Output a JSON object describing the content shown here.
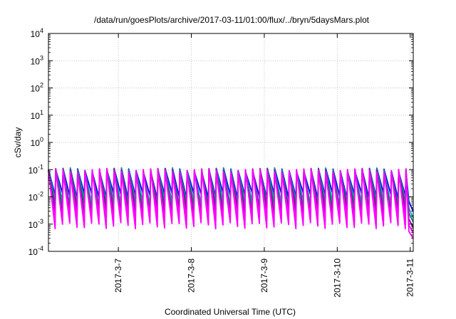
{
  "chart_data": {
    "type": "line",
    "title": "/data/run/goesPlots/archive/2017-03-11/01:00/flux/../bryn/5daysMars.plot",
    "xlabel": "Coordinated Universal Time (UTC)",
    "ylabel": "cSv/day",
    "y_scale": "log",
    "ylim": [
      0.0001,
      10000
    ],
    "y_ticks": [
      {
        "value": 0.0001,
        "base": "10",
        "exp": "-4"
      },
      {
        "value": 0.001,
        "base": "10",
        "exp": "-3"
      },
      {
        "value": 0.01,
        "base": "10",
        "exp": "-2"
      },
      {
        "value": 0.1,
        "base": "10",
        "exp": "-1"
      },
      {
        "value": 1,
        "base": "10",
        "exp": "0"
      },
      {
        "value": 10,
        "base": "10",
        "exp": "1"
      },
      {
        "value": 100,
        "base": "10",
        "exp": "2"
      },
      {
        "value": 1000,
        "base": "10",
        "exp": "3"
      },
      {
        "value": 10000,
        "base": "10",
        "exp": "4"
      }
    ],
    "xlim": [
      "2017-03-06T01:00",
      "2017-03-11T01:00"
    ],
    "x_ticks": [
      "2017-03-07",
      "2017-03-08",
      "2017-03-09",
      "2017-03-10",
      "2017-03-11"
    ],
    "x_tick_labels": [
      "2017-3-7",
      "2017-3-8",
      "2017-3-9",
      "2017-3-10",
      "2017-3-11"
    ],
    "grid": true,
    "legend": "none",
    "pattern": {
      "period_hours": 2.4,
      "peak_value": 0.1,
      "trough_upper": 0.012,
      "trough_lower": 0.0009,
      "end_time": "2017-03-11T01:00",
      "end_value_upper": 0.003,
      "end_value_lower": 0.0003
    },
    "series": [
      {
        "color": "#0000ff",
        "level": 0.02
      },
      {
        "color": "#00aaaa",
        "level": 0.25
      },
      {
        "color": "#008060",
        "level": 0.4
      },
      {
        "color": "#8000a0",
        "level": 0.6
      },
      {
        "color": "#ff00ff",
        "level": 0.8
      },
      {
        "color": "#ff00ff",
        "level": 1.0
      }
    ]
  }
}
